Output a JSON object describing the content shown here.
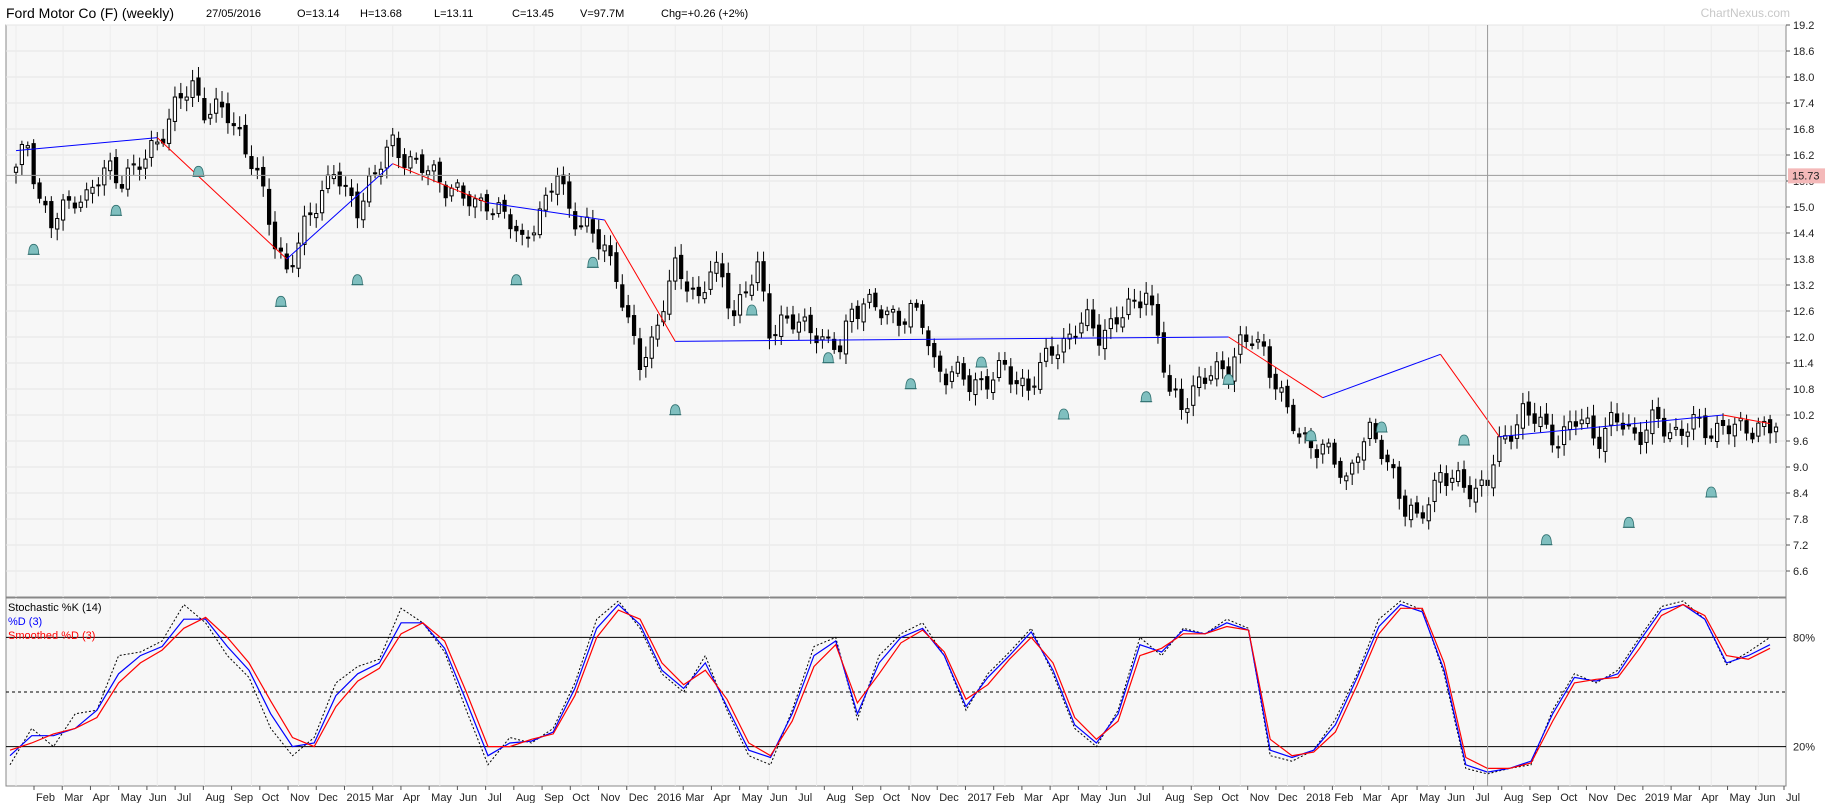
{
  "header": {
    "title": "Ford Motor Co (F) (weekly)",
    "date": "27/05/2016",
    "open": "O=13.14",
    "high": "H=13.68",
    "low": "L=13.11",
    "close": "C=13.45",
    "volume": "V=97.7M",
    "change": "Chg=+0.26 (+2%)",
    "watermark": "ChartNexus.com"
  },
  "crosshair": {
    "price_label": "15.73",
    "price": 15.73,
    "date_index": 100
  },
  "colors": {
    "up_down_line": "#0000ff",
    "down_line": "#ff0000",
    "candle": "#000000",
    "grid": "#e4e4e4",
    "marker": "#7fbfbf",
    "crosshair_label_bg": "#f4b9b9"
  },
  "chart_data": [
    {
      "type": "candlestick",
      "name": "price",
      "ylim": [
        6.0,
        19.2
      ],
      "y_ticks": [
        "19.2",
        "18.6",
        "18.0",
        "17.4",
        "16.8",
        "16.2",
        "15.6",
        "15.0",
        "14.4",
        "13.8",
        "13.2",
        "12.6",
        "12.0",
        "11.4",
        "10.8",
        "10.2",
        "9.6",
        "9.0",
        "8.4",
        "7.8",
        "7.2",
        "6.6"
      ],
      "x_labels": [
        "Feb",
        "Mar",
        "Apr",
        "May",
        "Jun",
        "Jul",
        "Aug",
        "Sep",
        "Oct",
        "Nov",
        "Dec",
        "2015",
        "Mar",
        "Apr",
        "May",
        "Jun",
        "Jul",
        "Aug",
        "Sep",
        "Oct",
        "Nov",
        "Dec",
        "2016",
        "Mar",
        "Apr",
        "May",
        "Jun",
        "Jul",
        "Aug",
        "Sep",
        "Oct",
        "Nov",
        "Dec",
        "2017",
        "Feb",
        "Mar",
        "Apr",
        "May",
        "Jun",
        "Jul",
        "Aug",
        "Sep",
        "Oct",
        "Nov",
        "Dec",
        "2018",
        "Feb",
        "Mar",
        "Apr",
        "May",
        "Jun",
        "Jul",
        "Aug",
        "Sep",
        "Oct",
        "Nov",
        "Dec",
        "2019",
        "Mar",
        "Apr",
        "May",
        "Jun",
        "Jul"
      ],
      "close_path": [
        [
          0,
          15.8
        ],
        [
          2,
          16.5
        ],
        [
          4,
          15.2
        ],
        [
          6,
          14.6
        ],
        [
          8,
          14.9
        ],
        [
          10,
          15.3
        ],
        [
          12,
          15.2
        ],
        [
          14,
          15.6
        ],
        [
          16,
          15.9
        ],
        [
          18,
          15.7
        ],
        [
          20,
          15.8
        ],
        [
          22,
          16.1
        ],
        [
          24,
          16.6
        ],
        [
          26,
          17.0
        ],
        [
          28,
          17.5
        ],
        [
          30,
          17.8
        ],
        [
          32,
          17.3
        ],
        [
          34,
          17.2
        ],
        [
          36,
          17.1
        ],
        [
          38,
          16.7
        ],
        [
          40,
          16.1
        ],
        [
          42,
          15.2
        ],
        [
          44,
          14.2
        ],
        [
          46,
          13.6
        ],
        [
          48,
          14.1
        ],
        [
          50,
          14.8
        ],
        [
          52,
          15.4
        ],
        [
          54,
          15.9
        ],
        [
          56,
          15.2
        ],
        [
          58,
          15.0
        ],
        [
          60,
          15.6
        ],
        [
          62,
          16.0
        ],
        [
          64,
          16.4
        ],
        [
          66,
          16.2
        ],
        [
          68,
          16.0
        ],
        [
          70,
          15.8
        ],
        [
          72,
          15.6
        ],
        [
          74,
          15.5
        ],
        [
          76,
          15.2
        ],
        [
          78,
          15.0
        ],
        [
          80,
          15.2
        ],
        [
          82,
          14.9
        ],
        [
          84,
          14.6
        ],
        [
          86,
          14.2
        ],
        [
          88,
          14.7
        ],
        [
          90,
          15.0
        ],
        [
          92,
          15.8
        ],
        [
          94,
          15.0
        ],
        [
          96,
          14.6
        ],
        [
          98,
          14.3
        ],
        [
          100,
          14.1
        ],
        [
          102,
          13.5
        ],
        [
          104,
          12.2
        ],
        [
          106,
          11.4
        ],
        [
          108,
          11.9
        ],
        [
          110,
          12.8
        ],
        [
          112,
          13.5
        ],
        [
          114,
          13.3
        ],
        [
          116,
          12.9
        ],
        [
          118,
          13.5
        ],
        [
          120,
          13.3
        ],
        [
          122,
          12.6
        ],
        [
          124,
          13.1
        ],
        [
          126,
          13.5
        ],
        [
          128,
          12.2
        ],
        [
          130,
          12.4
        ],
        [
          132,
          12.3
        ],
        [
          134,
          12.2
        ],
        [
          136,
          12.2
        ],
        [
          138,
          11.8
        ],
        [
          140,
          11.7
        ],
        [
          142,
          12.6
        ],
        [
          144,
          12.9
        ],
        [
          146,
          12.6
        ],
        [
          148,
          12.5
        ],
        [
          150,
          12.5
        ],
        [
          152,
          12.6
        ],
        [
          154,
          12.3
        ],
        [
          156,
          11.4
        ],
        [
          158,
          11.2
        ],
        [
          160,
          11.1
        ],
        [
          162,
          10.9
        ],
        [
          164,
          11.0
        ],
        [
          166,
          11.1
        ],
        [
          168,
          11.2
        ],
        [
          170,
          11.0
        ],
        [
          172,
          10.9
        ],
        [
          174,
          11.2
        ],
        [
          176,
          11.7
        ],
        [
          178,
          11.9
        ],
        [
          180,
          12.2
        ],
        [
          182,
          12.3
        ],
        [
          184,
          12.1
        ],
        [
          186,
          12.3
        ],
        [
          188,
          12.5
        ],
        [
          190,
          12.7
        ],
        [
          192,
          13.2
        ],
        [
          194,
          12.0
        ],
        [
          196,
          10.6
        ],
        [
          198,
          10.5
        ],
        [
          200,
          10.8
        ],
        [
          202,
          11.0
        ],
        [
          204,
          11.2
        ],
        [
          206,
          11.4
        ],
        [
          208,
          11.8
        ],
        [
          210,
          11.9
        ],
        [
          212,
          11.7
        ],
        [
          214,
          11.0
        ],
        [
          216,
          10.2
        ],
        [
          218,
          9.7
        ],
        [
          220,
          9.6
        ],
        [
          222,
          9.4
        ],
        [
          224,
          9.1
        ],
        [
          226,
          8.7
        ],
        [
          228,
          9.5
        ],
        [
          230,
          9.7
        ],
        [
          232,
          9.4
        ],
        [
          234,
          8.9
        ],
        [
          236,
          8.0
        ],
        [
          238,
          7.7
        ],
        [
          240,
          8.3
        ],
        [
          242,
          8.9
        ],
        [
          244,
          8.6
        ],
        [
          246,
          8.6
        ],
        [
          248,
          8.5
        ],
        [
          250,
          8.7
        ],
        [
          252,
          9.4
        ],
        [
          254,
          9.9
        ],
        [
          256,
          10.3
        ],
        [
          258,
          10.1
        ],
        [
          260,
          9.8
        ],
        [
          262,
          9.7
        ],
        [
          264,
          9.9
        ]
      ],
      "trend_lines": [
        {
          "color": "blue",
          "points": [
            [
              0,
              16.3
            ],
            [
              24,
              16.6
            ]
          ]
        },
        {
          "color": "red",
          "points": [
            [
              24,
              16.6
            ],
            [
              46,
              13.8
            ]
          ]
        },
        {
          "color": "blue",
          "points": [
            [
              46,
              13.8
            ],
            [
              64,
              16.0
            ]
          ]
        },
        {
          "color": "red",
          "points": [
            [
              64,
              16.0
            ],
            [
              80,
              15.1
            ]
          ]
        },
        {
          "color": "blue",
          "points": [
            [
              80,
              15.1
            ],
            [
              100,
              14.7
            ]
          ]
        },
        {
          "color": "red",
          "points": [
            [
              100,
              14.7
            ],
            [
              112,
              11.9
            ]
          ]
        },
        {
          "color": "blue",
          "points": [
            [
              112,
              11.9
            ],
            [
              206,
              12.0
            ]
          ]
        },
        {
          "color": "red",
          "points": [
            [
              206,
              12.0
            ],
            [
              222,
              10.6
            ]
          ]
        },
        {
          "color": "blue",
          "points": [
            [
              222,
              10.6
            ],
            [
              242,
              11.6
            ]
          ]
        },
        {
          "color": "red",
          "points": [
            [
              242,
              11.6
            ],
            [
              252,
              9.7
            ]
          ]
        },
        {
          "color": "blue",
          "points": [
            [
              252,
              9.7
            ],
            [
              290,
              10.2
            ]
          ]
        },
        {
          "color": "red",
          "points": [
            [
              290,
              10.2
            ],
            [
              298,
              10.0
            ]
          ]
        }
      ],
      "alert_markers": [
        [
          3,
          14.0
        ],
        [
          17,
          14.9
        ],
        [
          31,
          15.8
        ],
        [
          45,
          12.8
        ],
        [
          58,
          13.3
        ],
        [
          85,
          13.3
        ],
        [
          98,
          13.7
        ],
        [
          112,
          10.3
        ],
        [
          125,
          12.6
        ],
        [
          138,
          11.5
        ],
        [
          152,
          10.9
        ],
        [
          164,
          11.4
        ],
        [
          178,
          10.2
        ],
        [
          192,
          10.6
        ],
        [
          206,
          11.0
        ],
        [
          220,
          9.7
        ],
        [
          232,
          9.9
        ],
        [
          246,
          9.6
        ],
        [
          260,
          7.3
        ],
        [
          274,
          7.7
        ],
        [
          288,
          8.4
        ]
      ]
    },
    {
      "type": "line",
      "name": "stochastic",
      "ylim": [
        0,
        100
      ],
      "y_ticks": [
        "80%",
        "20%"
      ],
      "reference_lines": [
        80,
        50,
        20
      ],
      "legend": [
        "Stochastic %K (14)",
        "%D (3)",
        "Smoothed %D (3)"
      ],
      "series": [
        {
          "name": "Stochastic %K (14)",
          "style": "dotted",
          "color": "#000000",
          "values": [
            10,
            30,
            20,
            38,
            40,
            70,
            72,
            78,
            98,
            88,
            70,
            58,
            30,
            15,
            25,
            55,
            64,
            68,
            96,
            88,
            72,
            40,
            10,
            25,
            22,
            30,
            55,
            90,
            100,
            85,
            60,
            50,
            70,
            40,
            15,
            10,
            40,
            75,
            80,
            35,
            70,
            82,
            88,
            70,
            40,
            60,
            72,
            85,
            60,
            30,
            20,
            40,
            80,
            70,
            85,
            82,
            90,
            85,
            15,
            12,
            18,
            35,
            60,
            90,
            100,
            95,
            60,
            8,
            5,
            8,
            10,
            40,
            60,
            55,
            62,
            80,
            97,
            100,
            90,
            65,
            72,
            80
          ]
        },
        {
          "name": "%D (3)",
          "style": "solid",
          "color": "#0000ff",
          "values": [
            15,
            26,
            26,
            30,
            40,
            60,
            70,
            75,
            90,
            90,
            75,
            62,
            38,
            20,
            22,
            48,
            60,
            66,
            88,
            88,
            74,
            45,
            15,
            22,
            23,
            28,
            52,
            85,
            98,
            87,
            62,
            52,
            66,
            42,
            18,
            14,
            38,
            70,
            78,
            38,
            66,
            80,
            85,
            70,
            42,
            58,
            70,
            83,
            62,
            32,
            22,
            38,
            76,
            72,
            84,
            82,
            88,
            84,
            18,
            14,
            18,
            32,
            58,
            86,
            98,
            94,
            62,
            10,
            6,
            8,
            12,
            38,
            58,
            56,
            60,
            78,
            95,
            98,
            90,
            66,
            70,
            76
          ]
        },
        {
          "name": "Smoothed %D (3)",
          "style": "solid",
          "color": "#ff0000",
          "values": [
            18,
            22,
            27,
            30,
            36,
            55,
            66,
            73,
            85,
            91,
            80,
            66,
            45,
            25,
            20,
            42,
            56,
            63,
            82,
            88,
            78,
            50,
            20,
            20,
            24,
            27,
            48,
            80,
            95,
            90,
            66,
            54,
            62,
            46,
            22,
            15,
            34,
            64,
            76,
            44,
            60,
            77,
            84,
            72,
            46,
            54,
            68,
            80,
            66,
            36,
            24,
            34,
            70,
            74,
            82,
            82,
            86,
            84,
            24,
            15,
            17,
            28,
            54,
            82,
            96,
            96,
            66,
            14,
            8,
            8,
            11,
            34,
            55,
            57,
            58,
            74,
            92,
            98,
            92,
            70,
            68,
            74
          ]
        }
      ]
    }
  ]
}
